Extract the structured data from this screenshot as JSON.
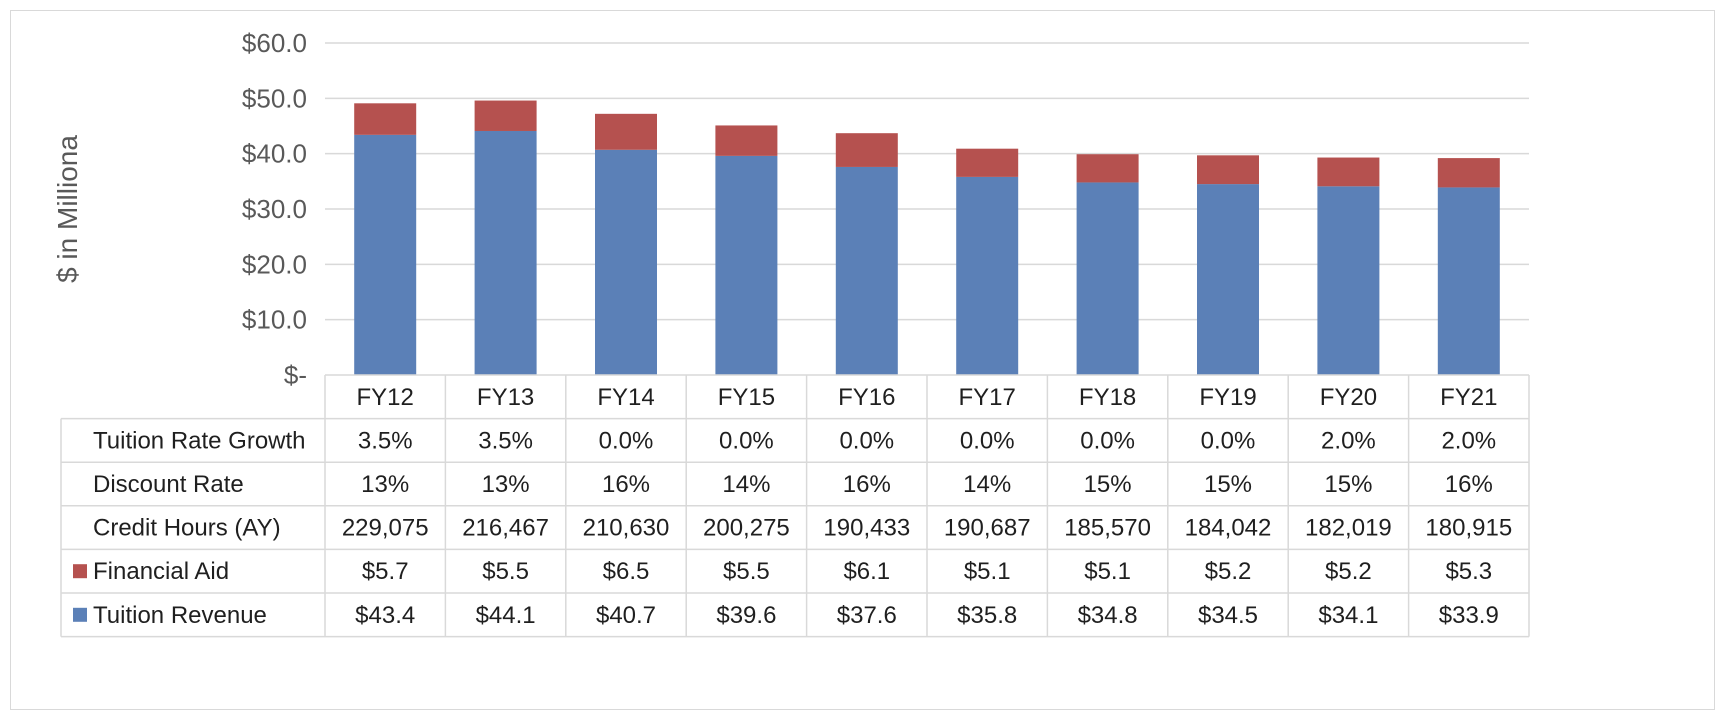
{
  "chart_data": {
    "type": "bar",
    "stacked": true,
    "title": "",
    "ylabel": "$ in Milliona",
    "xlabel": "",
    "ylim": [
      0,
      60
    ],
    "yticks": [
      0,
      10,
      20,
      30,
      40,
      50,
      60
    ],
    "ytick_labels": [
      "$-",
      "$10.0",
      "$20.0",
      "$30.0",
      "$40.0",
      "$50.0",
      "$60.0"
    ],
    "grid": true,
    "categories": [
      "FY12",
      "FY13",
      "FY14",
      "FY15",
      "FY16",
      "FY17",
      "FY18",
      "FY19",
      "FY20",
      "FY21"
    ],
    "series": [
      {
        "name": "Tuition Revenue",
        "color": "#5b80b7",
        "values": [
          43.4,
          44.1,
          40.7,
          39.6,
          37.6,
          35.8,
          34.8,
          34.5,
          34.1,
          33.9
        ],
        "labels": [
          "$43.4",
          "$44.1",
          "$40.7",
          "$39.6",
          "$37.6",
          "$35.8",
          "$34.8",
          "$34.5",
          "$34.1",
          "$33.9"
        ]
      },
      {
        "name": "Financial Aid",
        "color": "#b5514f",
        "values": [
          5.7,
          5.5,
          6.5,
          5.5,
          6.1,
          5.1,
          5.1,
          5.2,
          5.2,
          5.3
        ],
        "labels": [
          "$5.7",
          "$5.5",
          "$6.5",
          "$5.5",
          "$6.1",
          "$5.1",
          "$5.1",
          "$5.2",
          "$5.2",
          "$5.3"
        ]
      }
    ],
    "table_rows": [
      {
        "label": "Tuition Rate Growth",
        "values": [
          "3.5%",
          "3.5%",
          "0.0%",
          "0.0%",
          "0.0%",
          "0.0%",
          "0.0%",
          "0.0%",
          "2.0%",
          "2.0%"
        ]
      },
      {
        "label": "Discount Rate",
        "values": [
          "13%",
          "13%",
          "16%",
          "14%",
          "16%",
          "14%",
          "15%",
          "15%",
          "15%",
          "16%"
        ]
      },
      {
        "label": "Credit Hours (AY)",
        "values": [
          "229,075",
          "216,467",
          "210,630",
          "200,275",
          "190,433",
          "190,687",
          "185,570",
          "184,042",
          "182,019",
          "180,915"
        ]
      }
    ]
  }
}
